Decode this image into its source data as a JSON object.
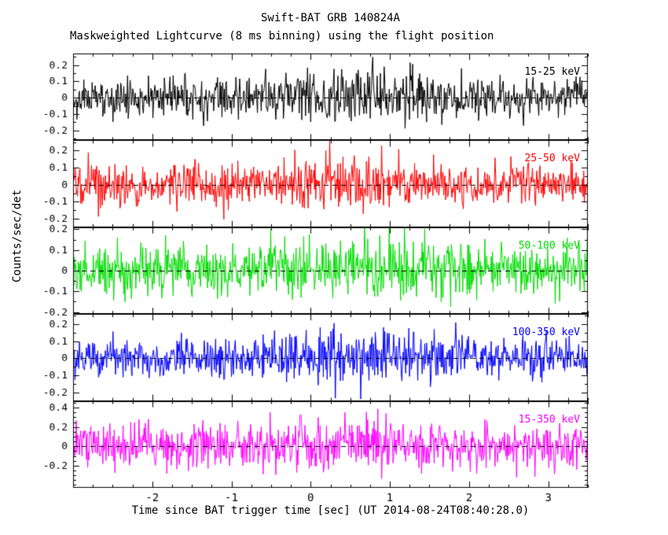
{
  "chart_data": {
    "type": "line",
    "title": "Swift-BAT GRB 140824A",
    "subtitle": "Maskweighted Lightcurve (8 ms binning) using the flight position",
    "xlabel": "Time since BAT trigger time [sec] (UT 2014-08-24T08:40:28.0)",
    "ylabel": "Counts/sec/det",
    "x_range": [
      -3.0,
      3.5
    ],
    "x_ticks": [
      -2,
      -1,
      0,
      1,
      2,
      3
    ],
    "x_minor_step": 0.25,
    "bin_seconds": 0.008,
    "grid": false,
    "legend_position": "none",
    "zero_line": "black dashed line at y = 0 in every panel",
    "background": "#ffffff",
    "frame_color": "#000000",
    "description": "Five stacked panels of mask-weighted count-rate noise fluctuating about zero counts/sec/det; dense 8 ms bins, no strong burst spike visible at this scale.",
    "burst": {
      "center": 0.6,
      "width": 0.7
    },
    "panels": [
      {
        "label": "15-25 keV",
        "color": "#000000",
        "ylim": [
          -0.26,
          0.27
        ],
        "yticks": [
          -0.2,
          -0.1,
          0,
          0.1,
          0.2
        ],
        "y_minor_step": 0.05,
        "sigma": 0.06,
        "burst_amp": 0.01,
        "seed": 11
      },
      {
        "label": "25-50 keV",
        "color": "#ff0000",
        "ylim": [
          -0.25,
          0.26
        ],
        "yticks": [
          -0.2,
          -0.1,
          0,
          0.1,
          0.2
        ],
        "y_minor_step": 0.05,
        "sigma": 0.06,
        "burst_amp": 0.015,
        "seed": 22
      },
      {
        "label": "50-100 keV",
        "color": "#00dd00",
        "ylim": [
          -0.21,
          0.21
        ],
        "yticks": [
          -0.2,
          -0.1,
          0,
          0.1,
          0.2
        ],
        "y_minor_step": 0.05,
        "sigma": 0.065,
        "burst_amp": 0.015,
        "seed": 33
      },
      {
        "label": "100-350 keV",
        "color": "#0000ff",
        "ylim": [
          -0.25,
          0.26
        ],
        "yticks": [
          -0.2,
          -0.1,
          0,
          0.1,
          0.2
        ],
        "y_minor_step": 0.05,
        "sigma": 0.06,
        "burst_amp": 0.01,
        "seed": 44
      },
      {
        "label": "15-350 keV",
        "color": "#ff00ff",
        "ylim": [
          -0.43,
          0.47
        ],
        "yticks": [
          -0.2,
          0,
          0.2,
          0.4
        ],
        "y_minor_step": 0.05,
        "sigma": 0.115,
        "burst_amp": 0.03,
        "seed": 55
      }
    ]
  }
}
